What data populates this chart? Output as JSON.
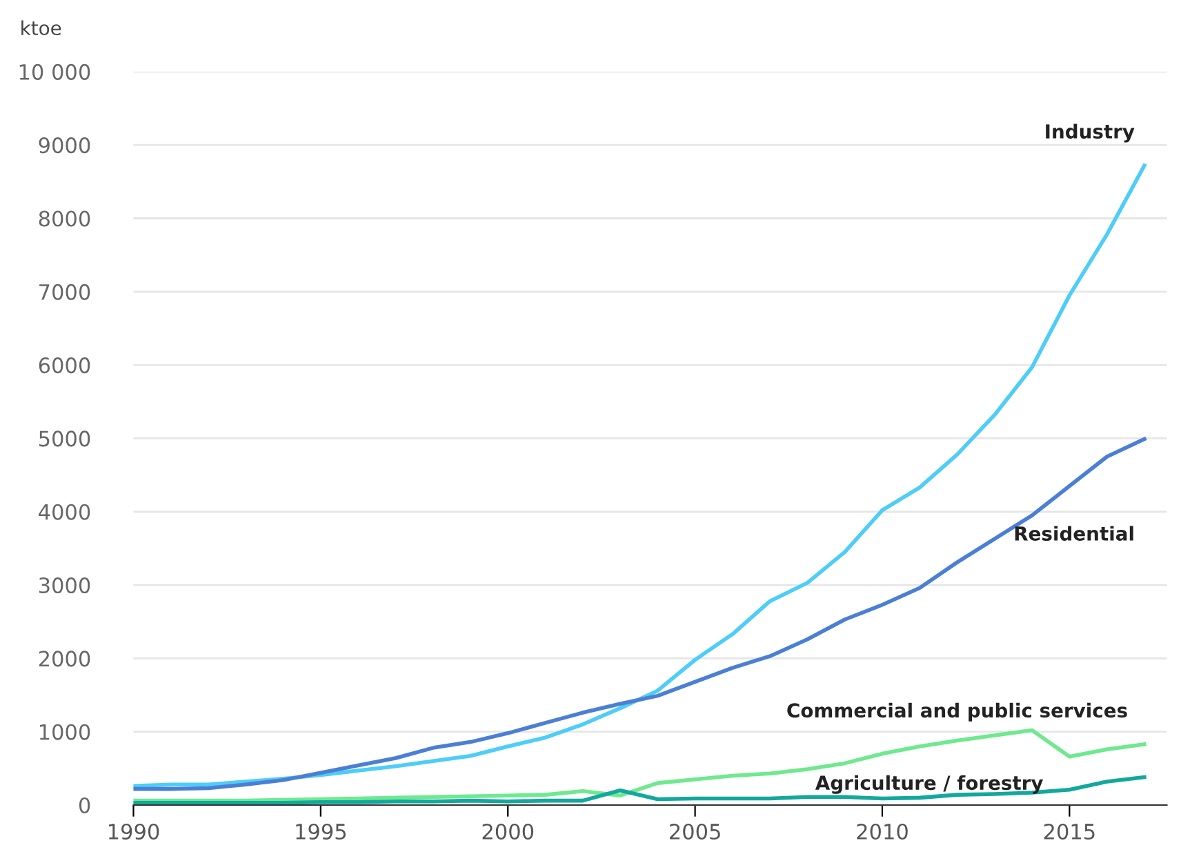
{
  "chart_data": {
    "type": "line",
    "ylabel": "ktoe",
    "x": [
      1990,
      1991,
      1992,
      1993,
      1994,
      1995,
      1996,
      1997,
      1998,
      1999,
      2000,
      2001,
      2002,
      2003,
      2004,
      2005,
      2006,
      2007,
      2008,
      2009,
      2010,
      2011,
      2012,
      2013,
      2014,
      2015,
      2016,
      2017
    ],
    "series": [
      {
        "name": "Industry",
        "color": "#4dcdf7",
        "values": [
          260,
          280,
          280,
          320,
          360,
          410,
          470,
          530,
          600,
          670,
          800,
          920,
          1100,
          1320,
          1560,
          1980,
          2330,
          2780,
          3030,
          3450,
          4020,
          4330,
          4780,
          5320,
          5970,
          6950,
          7780,
          8720
        ]
      },
      {
        "name": "Residential",
        "color": "#4a7fd4",
        "values": [
          220,
          220,
          230,
          280,
          340,
          440,
          540,
          640,
          780,
          860,
          980,
          1120,
          1260,
          1380,
          1490,
          1680,
          1870,
          2030,
          2260,
          2530,
          2730,
          2960,
          3310,
          3630,
          3950,
          4350,
          4750,
          4990
        ]
      },
      {
        "name": "Commercial and public services",
        "color": "#6ee98f",
        "values": [
          60,
          60,
          60,
          60,
          70,
          80,
          90,
          100,
          110,
          120,
          130,
          140,
          190,
          130,
          300,
          350,
          400,
          430,
          490,
          570,
          700,
          800,
          880,
          950,
          1020,
          660,
          760,
          830
        ]
      },
      {
        "name": "Agriculture / forestry",
        "color": "#13a89e",
        "values": [
          30,
          30,
          30,
          30,
          30,
          40,
          40,
          50,
          50,
          60,
          50,
          60,
          60,
          200,
          80,
          90,
          90,
          90,
          110,
          110,
          90,
          100,
          140,
          150,
          170,
          210,
          320,
          380
        ]
      }
    ],
    "xlim": [
      1990,
      2017.6
    ],
    "xticks": [
      1990,
      1995,
      2000,
      2005,
      2010,
      2015
    ],
    "ylim": [
      0,
      10000
    ],
    "yticks": [
      0,
      1000,
      2000,
      3000,
      4000,
      5000,
      6000,
      7000,
      8000,
      9000,
      {
        "value": 10000,
        "label": "10 000"
      }
    ],
    "grid": "y",
    "legend": false,
    "marker": "none",
    "line_style": "solid"
  }
}
